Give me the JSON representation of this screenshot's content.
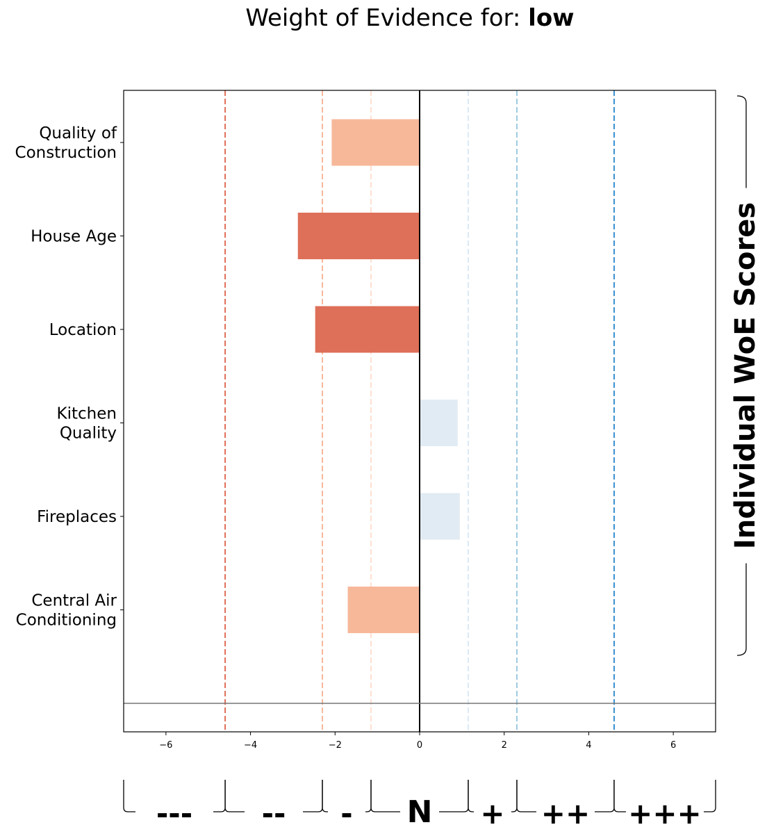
{
  "title": {
    "prefix": "Weight of Evidence for: ",
    "target": "low"
  },
  "chart_data": {
    "type": "bar",
    "orientation": "horizontal",
    "categories": [
      "Quality of\nConstruction",
      "House Age",
      "Location",
      "Kitchen\nQuality",
      "Fireplaces",
      "Central Air\nConditioning"
    ],
    "values": [
      -2.08,
      -2.88,
      -2.47,
      0.9,
      0.95,
      -1.7
    ],
    "bar_colors": [
      "#f7b89a",
      "#de6f58",
      "#de6f58",
      "#e1ebf3",
      "#e1ebf3",
      "#f7b89a"
    ],
    "xlim": [
      -7,
      7
    ],
    "xticks": [
      -6,
      -4,
      -2,
      0,
      2,
      4,
      6
    ],
    "xtick_labels": [
      "−6",
      "−4",
      "−2",
      "0",
      "2",
      "4",
      "6"
    ],
    "reference_lines": [
      {
        "x": -4.6,
        "color": "#de6f58"
      },
      {
        "x": -2.3,
        "color": "#f7b89a"
      },
      {
        "x": -1.15,
        "color": "#fde0d2"
      },
      {
        "x": 1.15,
        "color": "#dbe9f5"
      },
      {
        "x": 2.3,
        "color": "#9ecae1"
      },
      {
        "x": 4.6,
        "color": "#3a8fd0"
      }
    ],
    "bottom_line_color": "#777777",
    "evidence_bins": [
      {
        "label": "---",
        "from": -7,
        "to": -4.6
      },
      {
        "label": "--",
        "from": -4.6,
        "to": -2.3
      },
      {
        "label": "-",
        "from": -2.3,
        "to": -1.15
      },
      {
        "label": "N",
        "from": -1.15,
        "to": 1.15
      },
      {
        "label": "+",
        "from": 1.15,
        "to": 2.3
      },
      {
        "label": "++",
        "from": 2.3,
        "to": 4.6
      },
      {
        "label": "+++",
        "from": 4.6,
        "to": 7
      }
    ],
    "side_label": "Individual WoE Scores"
  }
}
